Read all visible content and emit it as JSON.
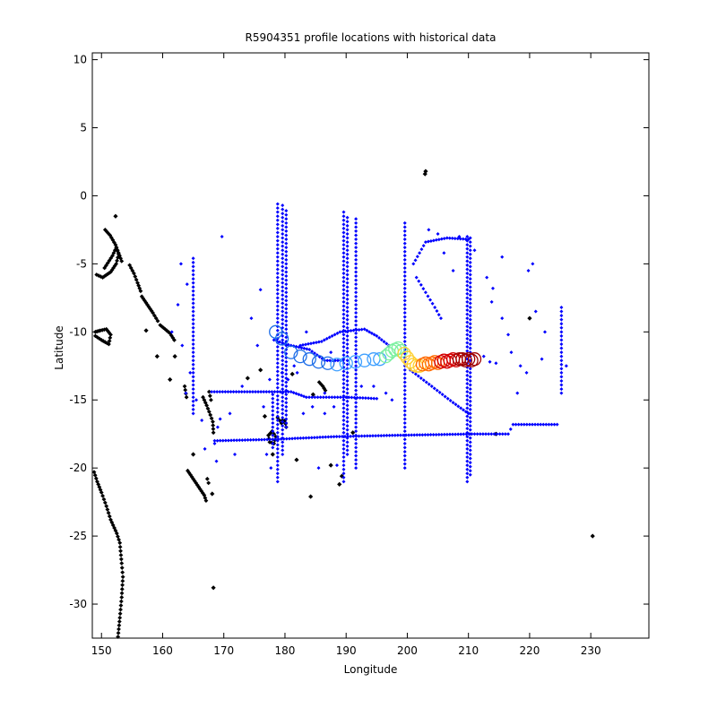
{
  "chart_data": {
    "type": "scatter",
    "title": "R5904351 profile locations with historical data",
    "xlabel": "Longitude",
    "ylabel": "Latitude",
    "xlim": [
      148.5,
      239.5
    ],
    "ylim": [
      -32.5,
      10.5
    ],
    "xticks": [
      150,
      160,
      170,
      180,
      190,
      200,
      210,
      220,
      230
    ],
    "yticks": [
      10,
      5,
      0,
      -5,
      -10,
      -15,
      -20,
      -25,
      -30
    ],
    "grid": false,
    "legend": "none",
    "colors": {
      "coast": "#000000",
      "historical": "#0000ff",
      "float_start": "#1e6ee8",
      "float_mid": "#7cf0a0",
      "float_end": "#d40000"
    },
    "series": [
      {
        "role": "coastline",
        "color": "#000000",
        "polylines": [
          [
            [
              152.7,
              -32.4
            ],
            [
              153.0,
              -31.0
            ],
            [
              153.3,
              -29.5
            ],
            [
              153.5,
              -28.0
            ],
            [
              153.3,
              -27.0
            ],
            [
              153.0,
              -25.5
            ],
            [
              152.5,
              -24.8
            ],
            [
              151.5,
              -23.8
            ],
            [
              150.8,
              -22.8
            ],
            [
              150.0,
              -21.8
            ],
            [
              149.3,
              -21.0
            ],
            [
              148.8,
              -20.3
            ]
          ],
          [
            [
              149.0,
              -10.3
            ],
            [
              150.0,
              -10.6
            ],
            [
              151.2,
              -10.9
            ],
            [
              151.5,
              -10.2
            ],
            [
              150.8,
              -9.8
            ],
            [
              149.8,
              -9.9
            ],
            [
              149.0,
              -10.0
            ]
          ],
          [
            [
              149.2,
              -5.8
            ],
            [
              150.2,
              -6.0
            ],
            [
              151.5,
              -5.6
            ],
            [
              152.4,
              -5.0
            ],
            [
              152.8,
              -4.3
            ],
            [
              152.4,
              -3.8
            ],
            [
              151.8,
              -4.4
            ],
            [
              150.5,
              -5.3
            ]
          ],
          [
            [
              150.6,
              -2.5
            ],
            [
              151.4,
              -2.9
            ],
            [
              152.3,
              -3.6
            ],
            [
              152.8,
              -4.2
            ],
            [
              153.3,
              -4.8
            ]
          ],
          [
            [
              154.6,
              -5.1
            ],
            [
              155.3,
              -5.7
            ],
            [
              155.9,
              -6.4
            ],
            [
              156.4,
              -7.0
            ]
          ],
          [
            [
              156.6,
              -7.4
            ],
            [
              157.5,
              -8.0
            ],
            [
              158.4,
              -8.6
            ],
            [
              159.2,
              -9.2
            ]
          ],
          [
            [
              159.6,
              -9.5
            ],
            [
              160.4,
              -9.8
            ],
            [
              161.2,
              -10.1
            ],
            [
              161.9,
              -10.6
            ]
          ],
          [
            [
              163.6,
              -14.0
            ],
            [
              163.9,
              -14.8
            ]
          ],
          [
            [
              166.6,
              -14.8
            ],
            [
              167.2,
              -15.4
            ],
            [
              167.8,
              -16.1
            ],
            [
              168.2,
              -16.6
            ],
            [
              168.3,
              -17.4
            ]
          ],
          [
            [
              167.6,
              -14.4
            ],
            [
              167.9,
              -15.0
            ]
          ],
          [
            [
              164.1,
              -20.2
            ],
            [
              165.0,
              -20.8
            ],
            [
              165.9,
              -21.4
            ],
            [
              166.8,
              -22.0
            ],
            [
              167.1,
              -22.4
            ]
          ],
          [
            [
              167.3,
              -20.8
            ],
            [
              167.5,
              -21.1
            ]
          ],
          [
            [
              177.3,
              -17.6
            ],
            [
              177.9,
              -17.3
            ],
            [
              178.5,
              -17.7
            ],
            [
              178.2,
              -18.2
            ],
            [
              177.5,
              -18.1
            ],
            [
              177.3,
              -17.6
            ]
          ],
          [
            [
              178.8,
              -16.3
            ],
            [
              179.4,
              -16.7
            ],
            [
              180.0,
              -16.5
            ],
            [
              180.2,
              -17.0
            ]
          ],
          [
            [
              185.6,
              -13.7
            ],
            [
              186.2,
              -14.0
            ],
            [
              186.6,
              -14.3
            ]
          ]
        ],
        "points": [
          [
            152.3,
            -1.5
          ],
          [
            157.3,
            -9.9
          ],
          [
            162.0,
            -11.8
          ],
          [
            159.1,
            -11.8
          ],
          [
            161.2,
            -13.5
          ],
          [
            176.7,
            -16.2
          ],
          [
            179.6,
            -16.5
          ],
          [
            181.9,
            -19.4
          ],
          [
            184.2,
            -22.1
          ],
          [
            187.5,
            -19.8
          ],
          [
            189.3,
            -20.6
          ],
          [
            188.9,
            -21.2
          ],
          [
            191.1,
            -17.4
          ],
          [
            176.0,
            -12.8
          ],
          [
            181.2,
            -13.1
          ],
          [
            184.6,
            -14.6
          ],
          [
            173.9,
            -13.4
          ],
          [
            178.0,
            -19.0
          ],
          [
            165.0,
            -19.0
          ],
          [
            168.1,
            -21.9
          ],
          [
            168.3,
            -28.8
          ],
          [
            203.0,
            1.8
          ],
          [
            202.9,
            1.6
          ],
          [
            220.0,
            -9.0
          ],
          [
            214.5,
            -17.5
          ],
          [
            230.3,
            -25.0
          ]
        ]
      },
      {
        "role": "historical_profiles",
        "color": "#0000ff",
        "polylines": [
          [
            [
              168.0,
              -14.4
            ],
            [
              181.0,
              -14.4
            ],
            [
              183.5,
              -14.8
            ],
            [
              190.0,
              -14.8
            ],
            [
              195.0,
              -14.9
            ]
          ],
          [
            [
              168.5,
              -18.0
            ],
            [
              178.0,
              -17.9
            ],
            [
              183.0,
              -17.8
            ],
            [
              188.0,
              -17.7
            ],
            [
              198.0,
              -17.6
            ],
            [
              211.0,
              -17.5
            ],
            [
              216.5,
              -17.5
            ],
            [
              217.3,
              -16.8
            ],
            [
              224.5,
              -16.8
            ]
          ],
          [
            [
              182.5,
              -11.0
            ],
            [
              186.0,
              -10.7
            ],
            [
              189.0,
              -10.0
            ],
            [
              193.0,
              -9.8
            ],
            [
              195.0,
              -10.3
            ],
            [
              197.0,
              -11.0
            ]
          ],
          [
            [
              200.5,
              -12.8
            ],
            [
              204.0,
              -14.0
            ],
            [
              207.5,
              -15.2
            ],
            [
              210.0,
              -16.0
            ]
          ],
          [
            [
              201.0,
              -5.0
            ],
            [
              203.0,
              -3.4
            ],
            [
              206.5,
              -3.1
            ],
            [
              210.0,
              -3.2
            ]
          ],
          [
            [
              201.5,
              -6.0
            ],
            [
              204.5,
              -8.2
            ],
            [
              205.5,
              -9.0
            ]
          ],
          [
            [
              178.2,
              -10.6
            ],
            [
              181.0,
              -11.0
            ],
            [
              184.0,
              -11.3
            ],
            [
              186.5,
              -12.1
            ],
            [
              189.5,
              -12.1
            ]
          ]
        ],
        "vlines": [
          {
            "x": 178.8,
            "y": [
              -21.0,
              -0.6
            ]
          },
          {
            "x": 179.6,
            "y": [
              -19.0,
              -0.5
            ]
          },
          {
            "x": 180.2,
            "y": [
              -17.0,
              -1.0
            ]
          },
          {
            "x": 189.6,
            "y": [
              -21.0,
              -1.0
            ]
          },
          {
            "x": 190.2,
            "y": [
              -19.0,
              -1.5
            ]
          },
          {
            "x": 191.6,
            "y": [
              -20.0,
              -1.5
            ]
          },
          {
            "x": 199.6,
            "y": [
              -20.0,
              -2.0
            ]
          },
          {
            "x": 209.8,
            "y": [
              -21.0,
              -3.0
            ]
          },
          {
            "x": 210.3,
            "y": [
              -20.5,
              -3.0
            ]
          },
          {
            "x": 225.2,
            "y": [
              -14.5,
              -8.0
            ]
          },
          {
            "x": 165.0,
            "y": [
              -16.0,
              -4.5
            ]
          },
          {
            "x": 178.0,
            "y": [
              -18.5,
              -14.5
            ]
          }
        ],
        "points": [
          [
            163.0,
            -5.0
          ],
          [
            164.0,
            -6.5
          ],
          [
            162.5,
            -8.0
          ],
          [
            161.5,
            -10.0
          ],
          [
            163.2,
            -11.0
          ],
          [
            164.5,
            -13.0
          ],
          [
            163.8,
            -14.5
          ],
          [
            165.5,
            -15.0
          ],
          [
            166.4,
            -16.5
          ],
          [
            166.9,
            -18.6
          ],
          [
            168.5,
            -18.2
          ],
          [
            169.0,
            -17.0
          ],
          [
            168.8,
            -19.5
          ],
          [
            169.4,
            -16.4
          ],
          [
            171.0,
            -16.0
          ],
          [
            171.8,
            -19.0
          ],
          [
            169.7,
            -3.0
          ],
          [
            176.0,
            -6.9
          ],
          [
            174.5,
            -9.0
          ],
          [
            175.5,
            -11.0
          ],
          [
            177.5,
            -13.5
          ],
          [
            173.0,
            -14.0
          ],
          [
            176.5,
            -15.5
          ],
          [
            177.0,
            -19.0
          ],
          [
            177.7,
            -20.0
          ],
          [
            183.5,
            -10.0
          ],
          [
            184.5,
            -15.5
          ],
          [
            186.5,
            -16.0
          ],
          [
            188.0,
            -15.5
          ],
          [
            187.5,
            -11.5
          ],
          [
            186.5,
            -14.5
          ],
          [
            192.5,
            -14.0
          ],
          [
            194.5,
            -14.0
          ],
          [
            196.5,
            -14.5
          ],
          [
            197.5,
            -15.0
          ],
          [
            203.5,
            -2.5
          ],
          [
            205.0,
            -2.8
          ],
          [
            208.5,
            -3.0
          ],
          [
            206.0,
            -4.2
          ],
          [
            207.5,
            -5.5
          ],
          [
            211.0,
            -4.0
          ],
          [
            214.0,
            -6.8
          ],
          [
            213.8,
            -7.8
          ],
          [
            215.5,
            -9.0
          ],
          [
            216.5,
            -10.2
          ],
          [
            217.0,
            -11.5
          ],
          [
            218.5,
            -12.5
          ],
          [
            219.5,
            -13.0
          ],
          [
            218.0,
            -14.5
          ],
          [
            221.0,
            -8.5
          ],
          [
            222.0,
            -12.0
          ],
          [
            222.5,
            -10.0
          ],
          [
            215.5,
            -4.5
          ],
          [
            212.5,
            -11.8
          ],
          [
            213.5,
            -12.2
          ],
          [
            214.5,
            -12.3
          ],
          [
            220.5,
            -5.0
          ],
          [
            219.8,
            -5.5
          ],
          [
            213.0,
            -6.0
          ],
          [
            226.0,
            -12.5
          ],
          [
            188.5,
            -19.8
          ],
          [
            185.5,
            -20.0
          ],
          [
            183.0,
            -16.0
          ],
          [
            182.0,
            -13.0
          ],
          [
            181.5,
            -12.5
          ],
          [
            180.5,
            -13.5
          ],
          [
            179.5,
            -13.0
          ]
        ]
      },
      {
        "role": "float_trajectory",
        "color_scale": [
          "#1e6ee8",
          "#3fa0ff",
          "#7cf0a0",
          "#ffd030",
          "#ff6a00",
          "#d40000",
          "#a00000"
        ],
        "x": [
          178.5,
          179.5,
          181.0,
          182.5,
          184.0,
          185.5,
          187.0,
          188.5,
          190.0,
          191.5,
          193.0,
          194.5,
          195.5,
          196.5,
          197.0,
          197.5,
          198.0,
          198.5,
          199.0,
          199.5,
          200.0,
          200.5,
          201.0,
          201.5,
          202.0,
          202.5,
          203.0,
          203.5,
          204.0,
          204.5,
          205.0,
          205.5,
          206.0,
          206.5,
          207.0,
          207.5,
          208.0,
          208.5,
          209.0,
          209.5,
          210.0,
          210.5,
          211.0
        ],
        "y": [
          -10.0,
          -10.5,
          -11.5,
          -11.8,
          -12.0,
          -12.2,
          -12.3,
          -12.4,
          -12.3,
          -12.2,
          -12.1,
          -12.0,
          -12.0,
          -11.8,
          -11.6,
          -11.4,
          -11.3,
          -11.2,
          -11.4,
          -11.6,
          -11.9,
          -12.2,
          -12.4,
          -12.5,
          -12.5,
          -12.4,
          -12.3,
          -12.4,
          -12.3,
          -12.2,
          -12.3,
          -12.2,
          -12.1,
          -12.2,
          -12.1,
          -12.0,
          -12.1,
          -12.0,
          -12.0,
          -12.1,
          -12.0,
          -12.1,
          -12.0
        ]
      }
    ]
  }
}
